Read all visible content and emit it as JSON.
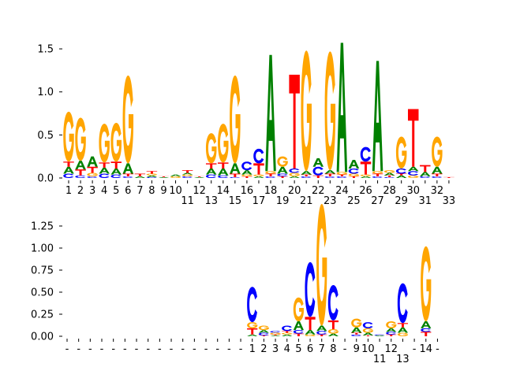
{
  "chart_data": [
    {
      "type": "sequence-logo",
      "title": "",
      "xlabel": "",
      "ylabel": "",
      "ylim": [
        0,
        1.6
      ],
      "yticks": [
        0,
        0.5,
        1.0,
        1.5
      ],
      "ytick_labels": [
        "0.0",
        "0.5",
        "1.0",
        "1.5"
      ],
      "xtick_labels": [
        "1",
        "2",
        "3",
        "4",
        "5",
        "6",
        "7",
        "8",
        "9",
        "10",
        "11",
        "12",
        "13",
        "14",
        "15",
        "16",
        "17",
        "18",
        "19",
        "20",
        "21",
        "22",
        "23",
        "24",
        "25",
        "26",
        "27",
        "28",
        "29",
        "30",
        "31",
        "32",
        "33"
      ],
      "stacks": [
        [
          [
            "C",
            0.05
          ],
          [
            "A",
            0.08
          ],
          [
            "T",
            0.06
          ],
          [
            "G",
            0.58
          ]
        ],
        [
          [
            "C",
            0.03
          ],
          [
            "T",
            0.07
          ],
          [
            "A",
            0.1
          ],
          [
            "G",
            0.5
          ]
        ],
        [
          [
            "C",
            0.02
          ],
          [
            "G",
            0.04
          ],
          [
            "T",
            0.07
          ],
          [
            "A",
            0.12
          ]
        ],
        [
          [
            "C",
            0.05
          ],
          [
            "A",
            0.07
          ],
          [
            "T",
            0.06
          ],
          [
            "G",
            0.45
          ]
        ],
        [
          [
            "C",
            0.04
          ],
          [
            "A",
            0.07
          ],
          [
            "T",
            0.08
          ],
          [
            "G",
            0.45
          ]
        ],
        [
          [
            "C",
            0.02
          ],
          [
            "T",
            0.03
          ],
          [
            "A",
            0.12
          ],
          [
            "G",
            1.02
          ]
        ],
        [
          [
            "A",
            0.02
          ],
          [
            "T",
            0.03
          ]
        ],
        [
          [
            "C",
            0.01
          ],
          [
            "A",
            0.02
          ],
          [
            "G",
            0.02
          ],
          [
            "T",
            0.03
          ]
        ],
        [
          [
            "A",
            0.01
          ],
          [
            "T",
            0.01
          ]
        ],
        [
          [
            "G",
            0.02
          ],
          [
            "A",
            0.02
          ]
        ],
        [
          [
            "C",
            0.02
          ],
          [
            "G",
            0.02
          ],
          [
            "A",
            0.02
          ],
          [
            "T",
            0.03
          ]
        ],
        [
          [
            "A",
            0.01
          ],
          [
            "T",
            0.01
          ]
        ],
        [
          [
            "C",
            0.04
          ],
          [
            "A",
            0.07
          ],
          [
            "T",
            0.06
          ],
          [
            "G",
            0.35
          ]
        ],
        [
          [
            "C",
            0.03
          ],
          [
            "A",
            0.08
          ],
          [
            "T",
            0.07
          ],
          [
            "G",
            0.45
          ]
        ],
        [
          [
            "C",
            0.01
          ],
          [
            "T",
            0.04
          ],
          [
            "A",
            0.12
          ],
          [
            "G",
            1.02
          ]
        ],
        [
          [
            "T",
            0.02
          ],
          [
            "G",
            0.02
          ],
          [
            "A",
            0.05
          ],
          [
            "C",
            0.1
          ]
        ],
        [
          [
            "A",
            0.02
          ],
          [
            "G",
            0.02
          ],
          [
            "T",
            0.13
          ],
          [
            "C",
            0.17
          ]
        ],
        [
          [
            "C",
            0.02
          ],
          [
            "T",
            0.03
          ],
          [
            "G",
            0.03
          ],
          [
            "A",
            1.35
          ]
        ],
        [
          [
            "T",
            0.02
          ],
          [
            "C",
            0.03
          ],
          [
            "A",
            0.08
          ],
          [
            "G",
            0.12
          ]
        ],
        [
          [
            "A",
            0.02
          ],
          [
            "G",
            0.04
          ],
          [
            "C",
            0.05
          ],
          [
            "T",
            1.09
          ]
        ],
        [
          [
            "C",
            0.02
          ],
          [
            "T",
            0.02
          ],
          [
            "A",
            0.04
          ],
          [
            "G",
            1.4
          ]
        ],
        [
          [
            "T",
            0.03
          ],
          [
            "C",
            0.1
          ],
          [
            "A",
            0.1
          ]
        ],
        [
          [
            "C",
            0.02
          ],
          [
            "T",
            0.03
          ],
          [
            "A",
            0.04
          ],
          [
            "G",
            1.38
          ]
        ],
        [
          [
            "C",
            0.02
          ],
          [
            "T",
            0.02
          ],
          [
            "G",
            0.03
          ],
          [
            "A",
            1.5
          ]
        ],
        [
          [
            "T",
            0.02
          ],
          [
            "G",
            0.03
          ],
          [
            "C",
            0.06
          ],
          [
            "A",
            0.1
          ]
        ],
        [
          [
            "A",
            0.02
          ],
          [
            "G",
            0.02
          ],
          [
            "T",
            0.15
          ],
          [
            "C",
            0.17
          ]
        ],
        [
          [
            "C",
            0.02
          ],
          [
            "T",
            0.03
          ],
          [
            "G",
            0.03
          ],
          [
            "A",
            1.28
          ]
        ],
        [
          [
            "C",
            0.01
          ],
          [
            "T",
            0.02
          ],
          [
            "A",
            0.03
          ],
          [
            "G",
            0.03
          ]
        ],
        [
          [
            "A",
            0.03
          ],
          [
            "T",
            0.02
          ],
          [
            "C",
            0.06
          ],
          [
            "G",
            0.37
          ]
        ],
        [
          [
            "G",
            0.03
          ],
          [
            "C",
            0.05
          ],
          [
            "A",
            0.05
          ],
          [
            "T",
            0.67
          ]
        ],
        [
          [
            "C",
            0.02
          ],
          [
            "A",
            0.05
          ],
          [
            "T",
            0.08
          ]
        ],
        [
          [
            "C",
            0.02
          ],
          [
            "T",
            0.03
          ],
          [
            "A",
            0.08
          ],
          [
            "G",
            0.35
          ]
        ],
        [
          [
            "T",
            0.01
          ]
        ]
      ]
    },
    {
      "type": "sequence-logo",
      "title": "",
      "xlabel": "",
      "ylabel": "",
      "ylim": [
        0,
        1.5
      ],
      "yticks": [
        0,
        0.25,
        0.5,
        0.75,
        1.0,
        1.25
      ],
      "ytick_labels": [
        "0.00",
        "0.25",
        "0.50",
        "0.75",
        "1.00",
        "1.25"
      ],
      "xtick_labels": [
        "-",
        "-",
        "-",
        "-",
        "-",
        "-",
        "-",
        "-",
        "-",
        "-",
        "-",
        "-",
        "-",
        "-",
        "-",
        "-",
        "1",
        "2",
        "3",
        "4",
        "5",
        "6",
        "7",
        "8",
        "-",
        "9",
        "10",
        "11",
        "12",
        "13",
        "-",
        "14",
        "-"
      ],
      "stacks": [
        [],
        [],
        [],
        [],
        [],
        [],
        [],
        [],
        [],
        [],
        [],
        [],
        [],
        [],
        [],
        [],
        [
          [
            "A",
            0.02
          ],
          [
            "T",
            0.07
          ],
          [
            "G",
            0.07
          ],
          [
            "C",
            0.4
          ]
        ],
        [
          [
            "T",
            0.01
          ],
          [
            "C",
            0.03
          ],
          [
            "A",
            0.03
          ],
          [
            "G",
            0.05
          ]
        ],
        [
          [
            "A",
            0.01
          ],
          [
            "T",
            0.01
          ],
          [
            "G",
            0.02
          ],
          [
            "C",
            0.02
          ]
        ],
        [
          [
            "A",
            0.02
          ],
          [
            "G",
            0.02
          ],
          [
            "T",
            0.02
          ],
          [
            "C",
            0.06
          ]
        ],
        [
          [
            "T",
            0.03
          ],
          [
            "C",
            0.04
          ],
          [
            "A",
            0.1
          ],
          [
            "G",
            0.27
          ]
        ],
        [
          [
            "G",
            0.02
          ],
          [
            "A",
            0.05
          ],
          [
            "T",
            0.15
          ],
          [
            "C",
            0.62
          ]
        ],
        [
          [
            "T",
            0.02
          ],
          [
            "C",
            0.04
          ],
          [
            "A",
            0.06
          ],
          [
            "G",
            1.38
          ]
        ],
        [
          [
            "A",
            0.03
          ],
          [
            "G",
            0.05
          ],
          [
            "T",
            0.1
          ],
          [
            "C",
            0.4
          ]
        ],
        [],
        [
          [
            "C",
            0.02
          ],
          [
            "T",
            0.02
          ],
          [
            "A",
            0.06
          ],
          [
            "G",
            0.1
          ]
        ],
        [
          [
            "T",
            0.01
          ],
          [
            "A",
            0.03
          ],
          [
            "G",
            0.05
          ],
          [
            "C",
            0.07
          ]
        ],
        [
          [
            "A",
            0.01
          ],
          [
            "C",
            0.01
          ]
        ],
        [
          [
            "T",
            0.02
          ],
          [
            "C",
            0.03
          ],
          [
            "A",
            0.04
          ],
          [
            "G",
            0.08
          ]
        ],
        [
          [
            "G",
            0.04
          ],
          [
            "A",
            0.06
          ],
          [
            "T",
            0.05
          ],
          [
            "C",
            0.45
          ]
        ],
        [],
        [
          [
            "T",
            0.05
          ],
          [
            "C",
            0.04
          ],
          [
            "A",
            0.08
          ],
          [
            "G",
            0.85
          ]
        ],
        []
      ]
    }
  ],
  "colors": {
    "A": "#008000",
    "C": "#0000ff",
    "G": "#ffa500",
    "T": "#ff0000"
  }
}
